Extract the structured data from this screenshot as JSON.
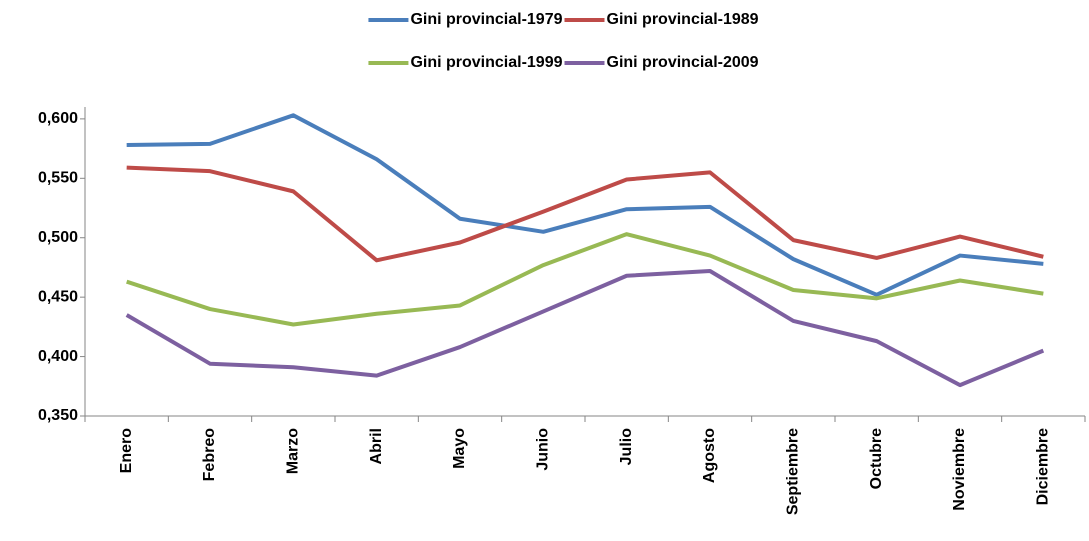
{
  "chart_data": {
    "type": "line",
    "categories": [
      "Enero",
      "Febreo",
      "Marzo",
      "Abril",
      "Mayo",
      "Junio",
      "Julio",
      "Agosto",
      "Septiembre",
      "Octubre",
      "Noviembre",
      "Diciembre"
    ],
    "series": [
      {
        "name": "Gini provincial-1979",
        "color": "#4a7ebb",
        "values": [
          0.578,
          0.579,
          0.603,
          0.566,
          0.516,
          0.505,
          0.524,
          0.526,
          0.482,
          0.452,
          0.485,
          0.478
        ]
      },
      {
        "name": "Gini provincial-1989",
        "color": "#be4b48",
        "values": [
          0.559,
          0.556,
          0.539,
          0.481,
          0.496,
          0.522,
          0.549,
          0.555,
          0.498,
          0.483,
          0.501,
          0.484
        ]
      },
      {
        "name": "Gini provincial-1999",
        "color": "#98b954",
        "values": [
          0.463,
          0.44,
          0.427,
          0.436,
          0.443,
          0.477,
          0.503,
          0.485,
          0.456,
          0.449,
          0.464,
          0.453
        ]
      },
      {
        "name": "Gini provincial-2009",
        "color": "#7d60a0",
        "values": [
          0.435,
          0.394,
          0.391,
          0.384,
          0.408,
          0.438,
          0.468,
          0.472,
          0.43,
          0.413,
          0.376,
          0.405
        ]
      }
    ],
    "ylim": [
      0.35,
      0.61
    ],
    "yticks": [
      {
        "value": 0.35,
        "label": "0,350"
      },
      {
        "value": 0.4,
        "label": "0,400"
      },
      {
        "value": 0.45,
        "label": "0,450"
      },
      {
        "value": 0.5,
        "label": "0,500"
      },
      {
        "value": 0.55,
        "label": "0,550"
      },
      {
        "value": 0.6,
        "label": "0,600"
      }
    ],
    "grid": false,
    "legend": "top"
  }
}
